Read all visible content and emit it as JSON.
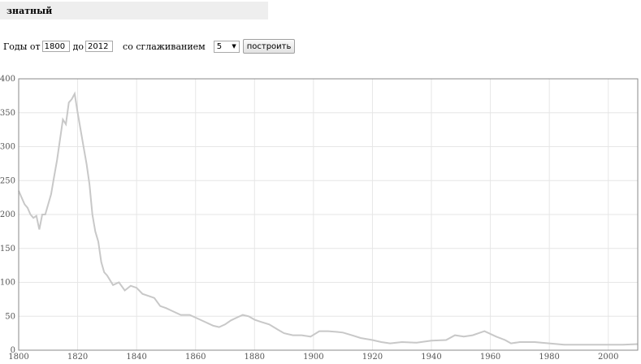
{
  "header": {
    "word": "знатный"
  },
  "controls": {
    "years_from_label": "Годы от",
    "year_from": "1800",
    "to_label": "до",
    "year_to": "2012",
    "smoothing_label": "со сглаживанием",
    "smoothing_value": "5",
    "build_button": "построить"
  },
  "chart_data": {
    "type": "line",
    "title": "",
    "xlabel": "",
    "ylabel": "",
    "xlim": [
      1800,
      2010
    ],
    "ylim": [
      0,
      400
    ],
    "x_ticks": [
      "1800",
      "1820",
      "1840",
      "1860",
      "1880",
      "1900",
      "1920",
      "1940",
      "1960",
      "1980",
      "2000"
    ],
    "y_ticks": [
      "0",
      "50",
      "100",
      "150",
      "200",
      "250",
      "300",
      "350",
      "400"
    ],
    "grid": true,
    "line_color": "#c8c8c8",
    "x": [
      1800,
      1801,
      1802,
      1803,
      1804,
      1805,
      1806,
      1807,
      1808,
      1809,
      1810,
      1811,
      1812,
      1813,
      1814,
      1815,
      1816,
      1817,
      1818,
      1819,
      1820,
      1821,
      1822,
      1823,
      1824,
      1825,
      1826,
      1827,
      1828,
      1829,
      1830,
      1832,
      1834,
      1836,
      1838,
      1840,
      1842,
      1844,
      1846,
      1848,
      1850,
      1852,
      1855,
      1858,
      1860,
      1863,
      1866,
      1868,
      1870,
      1872,
      1874,
      1876,
      1878,
      1880,
      1882,
      1885,
      1888,
      1890,
      1893,
      1896,
      1899,
      1902,
      1905,
      1908,
      1910,
      1913,
      1916,
      1920,
      1923,
      1926,
      1930,
      1935,
      1940,
      1945,
      1948,
      1951,
      1954,
      1956,
      1958,
      1962,
      1965,
      1967,
      1970,
      1975,
      1980,
      1985,
      1990,
      1995,
      2000,
      2005,
      2010
    ],
    "y": [
      235,
      225,
      215,
      210,
      200,
      195,
      198,
      178,
      200,
      200,
      215,
      230,
      255,
      280,
      310,
      340,
      333,
      365,
      370,
      378,
      350,
      325,
      300,
      275,
      245,
      200,
      175,
      160,
      130,
      115,
      110,
      96,
      100,
      88,
      95,
      92,
      83,
      80,
      77,
      65,
      62,
      58,
      52,
      52,
      48,
      42,
      36,
      34,
      38,
      44,
      48,
      52,
      50,
      45,
      42,
      38,
      30,
      25,
      22,
      22,
      20,
      28,
      28,
      27,
      26,
      22,
      18,
      15,
      12,
      10,
      12,
      11,
      14,
      15,
      22,
      20,
      22,
      25,
      28,
      20,
      15,
      10,
      12,
      12,
      10,
      8,
      8,
      8,
      8,
      8,
      9
    ]
  }
}
